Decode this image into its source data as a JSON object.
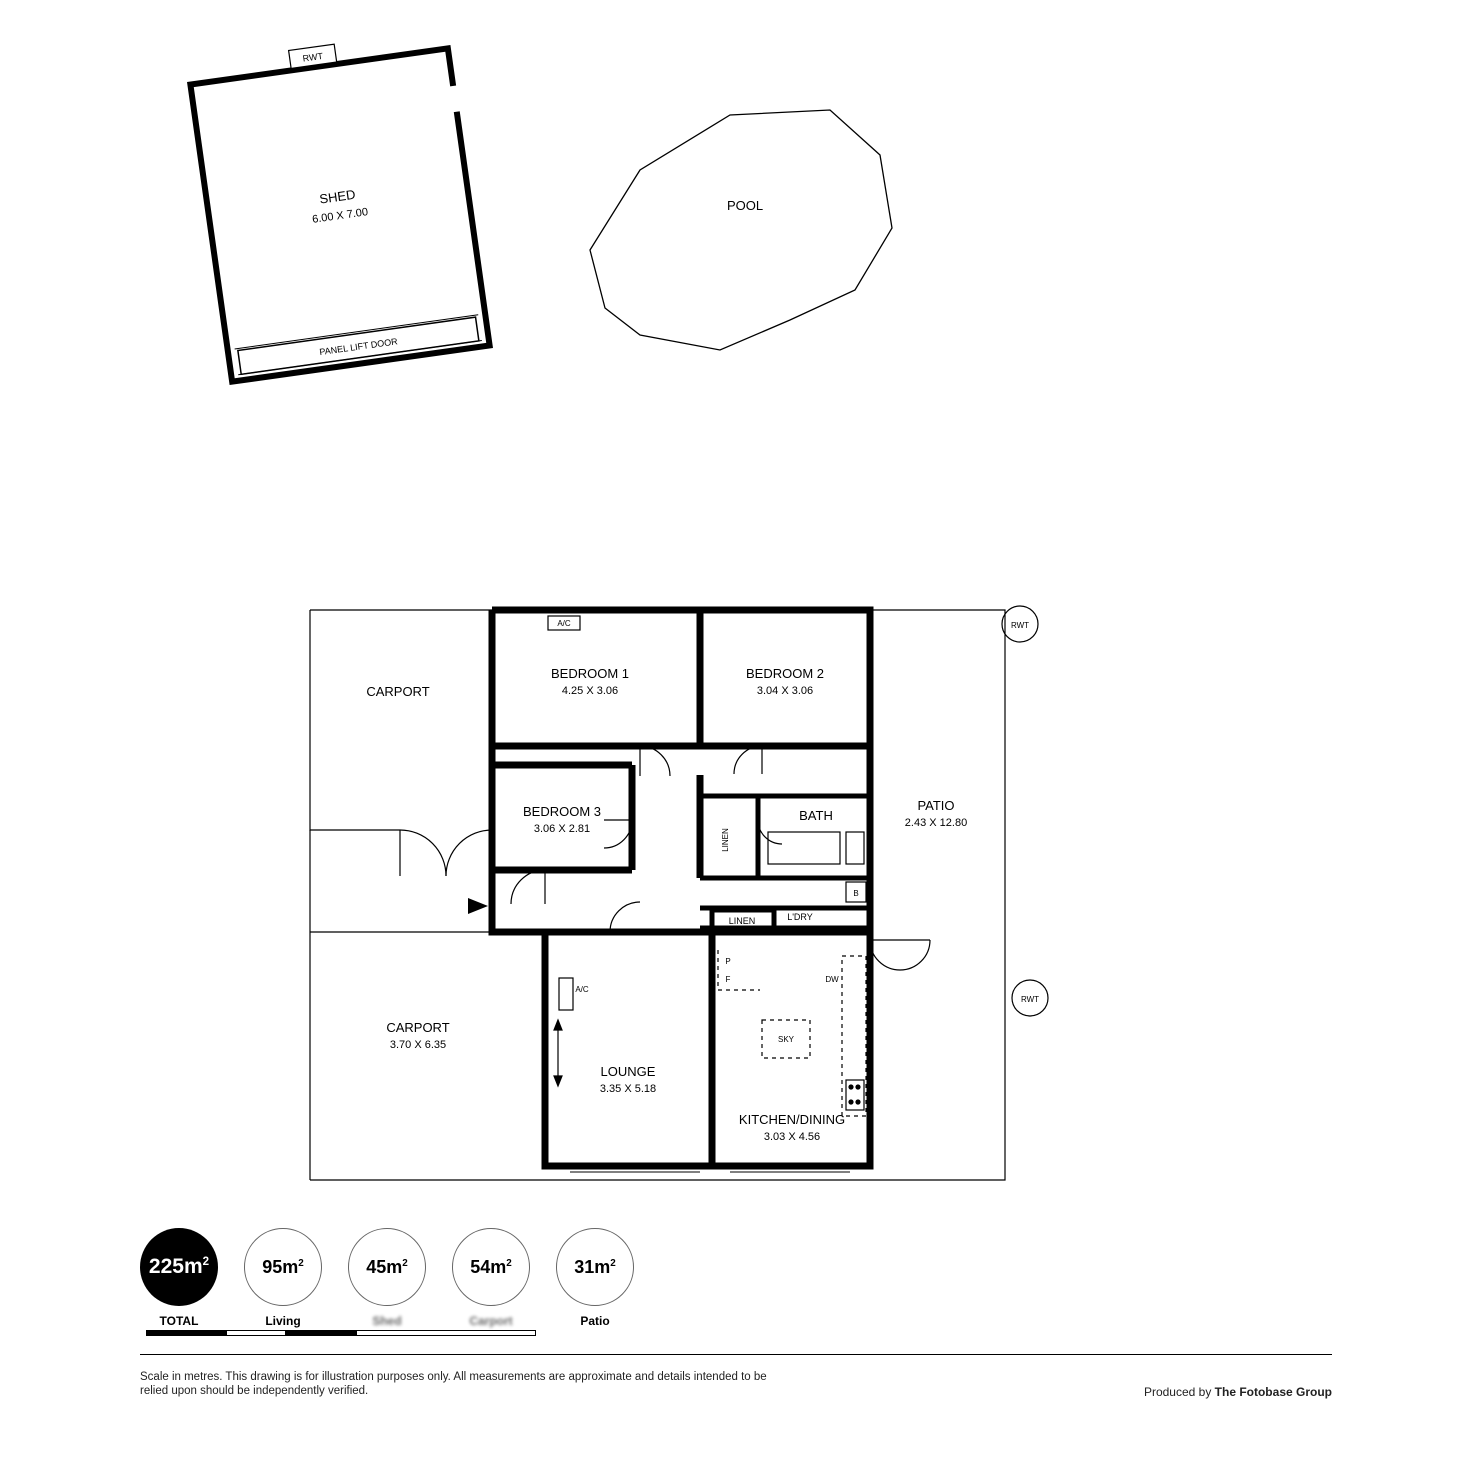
{
  "colors": {
    "stroke": "#000000",
    "wallFill": "#000000",
    "thinStroke": "#555555",
    "dash": "#888888",
    "bg": "#ffffff"
  },
  "shed": {
    "label": "SHED",
    "dims": "6.00 X 7.00",
    "door": "PANEL LIFT DOOR",
    "rwt": "RWT"
  },
  "pool": {
    "label": "POOL"
  },
  "house": {
    "carport_upper": "CARPORT",
    "bedroom1": {
      "label": "BEDROOM 1",
      "dims": "4.25 X 3.06",
      "ac": "A/C"
    },
    "bedroom2": {
      "label": "BEDROOM 2",
      "dims": "3.04 X 3.06"
    },
    "bedroom3": {
      "label": "BEDROOM 3",
      "dims": "3.06 X 2.81"
    },
    "bath": "BATH",
    "linen1": "LINEN",
    "linen2": "LINEN",
    "ldry": "L'DRY",
    "b": "B",
    "patio": {
      "label": "PATIO",
      "dims": "2.43 X 12.80"
    },
    "carport_lower": {
      "label": "CARPORT",
      "dims": "3.70 X 6.35"
    },
    "lounge": {
      "label": "LOUNGE",
      "dims": "3.35 X 5.18",
      "ac": "A/C"
    },
    "kitchen": {
      "label": "KITCHEN/DINING",
      "dims": "3.03 X 4.56",
      "p": "P",
      "f": "F",
      "dw": "DW",
      "sky": "SKY"
    },
    "rwt1": "RWT",
    "rwt2": "RWT"
  },
  "summary": {
    "total": {
      "value": "225",
      "unit": "m",
      "label": "TOTAL"
    },
    "items": [
      {
        "value": "95",
        "unit": "m",
        "label": "Living"
      },
      {
        "value": "45",
        "unit": "m",
        "label": "Shed"
      },
      {
        "value": "54",
        "unit": "m",
        "label": "Carport"
      },
      {
        "value": "31",
        "unit": "m",
        "label": "Patio"
      }
    ]
  },
  "segmentBar": {
    "colors": [
      "#000000",
      "#ffffff",
      "#000000",
      "#ffffff"
    ],
    "widths": [
      80,
      60,
      70,
      180
    ],
    "border": "#000000"
  },
  "footer": {
    "disclaimer": "Scale in metres. This drawing is for illustration purposes only. All measurements are approximate and details intended to be relied upon should be independently verified.",
    "producer_prefix": "Produced by ",
    "producer_name": "The Fotobase Group"
  }
}
